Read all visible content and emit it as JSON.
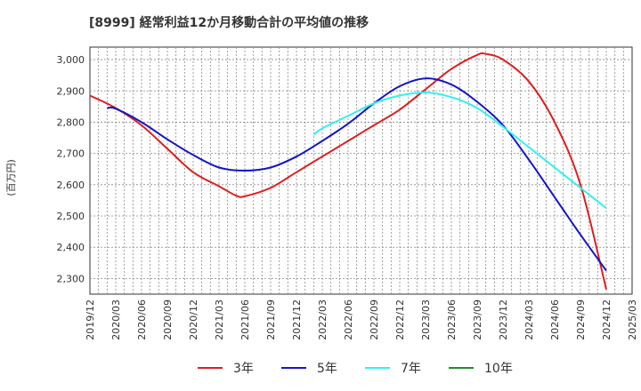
{
  "chart_data": {
    "type": "line",
    "title": "[8999]  経常利益12か月移動合計の平均値の推移",
    "ylabel": "(百万円)",
    "ylim": [
      2250,
      3040
    ],
    "yticks": [
      2300,
      2400,
      2500,
      2600,
      2700,
      2800,
      2900,
      3000
    ],
    "ytick_labels": [
      "2,300",
      "2,400",
      "2,500",
      "2,600",
      "2,700",
      "2,800",
      "2,900",
      "3,000"
    ],
    "xticks": [
      "2019/12",
      "2020/03",
      "2020/06",
      "2020/09",
      "2020/12",
      "2021/03",
      "2021/06",
      "2021/09",
      "2021/12",
      "2022/03",
      "2022/06",
      "2022/09",
      "2022/12",
      "2023/03",
      "2023/06",
      "2023/09",
      "2023/12",
      "2024/03",
      "2024/06",
      "2024/09",
      "2024/12",
      "2025/03"
    ],
    "grid": true,
    "legend_position": "bottom",
    "series": [
      {
        "name": "3年",
        "color": "#dd1f1f",
        "points": [
          [
            "2019/12",
            2885
          ],
          [
            "2020/03",
            2845
          ],
          [
            "2020/06",
            2790
          ],
          [
            "2020/09",
            2715
          ],
          [
            "2020/12",
            2640
          ],
          [
            "2021/03",
            2595
          ],
          [
            "2021/05",
            2565
          ],
          [
            "2021/06",
            2563
          ],
          [
            "2021/09",
            2590
          ],
          [
            "2021/12",
            2640
          ],
          [
            "2022/03",
            2690
          ],
          [
            "2022/06",
            2740
          ],
          [
            "2022/09",
            2790
          ],
          [
            "2022/12",
            2840
          ],
          [
            "2023/03",
            2905
          ],
          [
            "2023/06",
            2970
          ],
          [
            "2023/09",
            3015
          ],
          [
            "2023/10",
            3018
          ],
          [
            "2023/12",
            3000
          ],
          [
            "2024/03",
            2930
          ],
          [
            "2024/06",
            2800
          ],
          [
            "2024/09",
            2600
          ],
          [
            "2024/12",
            2265
          ]
        ]
      },
      {
        "name": "5年",
        "color": "#1414c8",
        "points": [
          [
            "2020/02",
            2845
          ],
          [
            "2020/03",
            2843
          ],
          [
            "2020/06",
            2800
          ],
          [
            "2020/09",
            2745
          ],
          [
            "2020/12",
            2695
          ],
          [
            "2021/03",
            2655
          ],
          [
            "2021/06",
            2645
          ],
          [
            "2021/09",
            2655
          ],
          [
            "2021/12",
            2690
          ],
          [
            "2022/03",
            2740
          ],
          [
            "2022/06",
            2795
          ],
          [
            "2022/09",
            2860
          ],
          [
            "2022/12",
            2915
          ],
          [
            "2023/03",
            2940
          ],
          [
            "2023/06",
            2920
          ],
          [
            "2023/09",
            2865
          ],
          [
            "2023/12",
            2790
          ],
          [
            "2024/03",
            2680
          ],
          [
            "2024/06",
            2560
          ],
          [
            "2024/09",
            2440
          ],
          [
            "2024/12",
            2325
          ]
        ]
      },
      {
        "name": "7年",
        "color": "#33f0f0",
        "points": [
          [
            "2022/02",
            2760
          ],
          [
            "2022/03",
            2780
          ],
          [
            "2022/06",
            2820
          ],
          [
            "2022/09",
            2860
          ],
          [
            "2022/12",
            2885
          ],
          [
            "2023/03",
            2895
          ],
          [
            "2023/06",
            2880
          ],
          [
            "2023/09",
            2845
          ],
          [
            "2023/12",
            2785
          ],
          [
            "2024/03",
            2720
          ],
          [
            "2024/06",
            2655
          ],
          [
            "2024/09",
            2590
          ],
          [
            "2024/12",
            2525
          ]
        ]
      },
      {
        "name": "10年",
        "color": "#2a8a2a",
        "points": []
      }
    ]
  }
}
